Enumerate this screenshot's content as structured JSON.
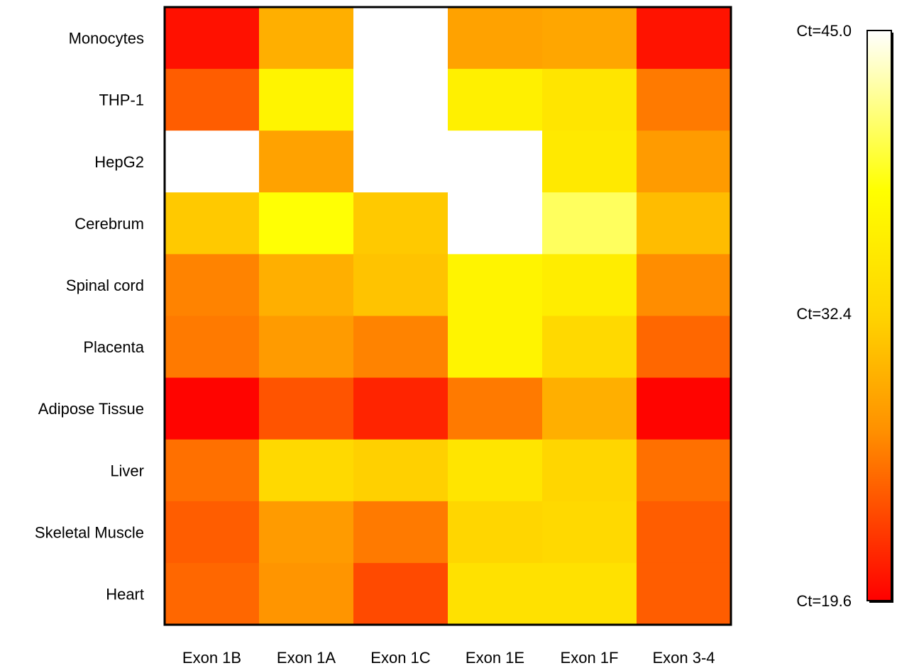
{
  "chart_data": {
    "type": "heatmap",
    "title": "",
    "xlabel": "",
    "ylabel": "",
    "columns": [
      "Exon 1B",
      "Exon 1A",
      "Exon 1C",
      "Exon 1E",
      "Exon 1F",
      "Exon 3-4"
    ],
    "rows": [
      "Monocytes",
      "THP-1",
      "HepG2",
      "Cerebrum",
      "Spinal cord",
      "Placenta",
      "Adipose Tissue",
      "Liver",
      "Skeletal Muscle",
      "Heart"
    ],
    "values": [
      [
        20.5,
        29.5,
        45.0,
        28.5,
        28.8,
        20.6
      ],
      [
        24.5,
        36.5,
        45.0,
        36.0,
        34.5,
        26.0
      ],
      [
        45.0,
        28.5,
        45.0,
        45.0,
        35.0,
        28.0
      ],
      [
        31.5,
        38.0,
        31.5,
        45.0,
        40.5,
        30.5
      ],
      [
        26.5,
        29.5,
        31.0,
        36.5,
        35.5,
        27.0
      ],
      [
        26.0,
        28.0,
        26.5,
        36.5,
        33.0,
        25.0
      ],
      [
        19.8,
        24.0,
        21.5,
        26.0,
        29.5,
        19.8
      ],
      [
        25.5,
        33.0,
        32.0,
        34.5,
        32.5,
        25.5
      ],
      [
        24.5,
        28.0,
        26.0,
        32.5,
        33.0,
        24.5
      ],
      [
        25.0,
        27.5,
        23.5,
        34.0,
        34.0,
        24.5
      ]
    ],
    "colorbar": {
      "min": 19.6,
      "max": 45.0,
      "labels": [
        "Ct=45.0",
        "Ct=32.4",
        "Ct=19.6"
      ],
      "label_values": [
        45.0,
        32.4,
        19.6
      ],
      "colors": [
        "#ff0000",
        "#ff9100",
        "#ffd400",
        "#ffff00",
        "#ffffff"
      ],
      "color_stops": [
        0,
        0.3,
        0.5,
        0.72,
        1
      ]
    },
    "grid": false,
    "frame_color": "#000000"
  }
}
